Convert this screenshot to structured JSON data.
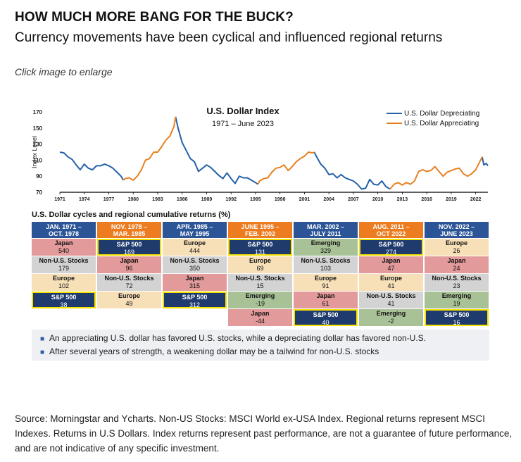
{
  "header": {
    "title": "HOW MUCH MORE BANG FOR THE BUCK?",
    "subtitle": "Currency movements have been cyclical and influenced regional returns",
    "click_hint": "Click image to enlarge"
  },
  "colors": {
    "depreciating": "#2461a8",
    "appreciating": "#e8801f",
    "header_blue": "#2b5597",
    "header_orange": "#ec7c1f",
    "sp_navy": "#1f3b6e",
    "sp_border": "#f5e100",
    "japan": "#e39a9b",
    "europe": "#f7e0b8",
    "non_us": "#d3d3d3",
    "emerging": "#a8c196"
  },
  "chart_data": {
    "type": "line",
    "title": "U.S. Dollar Index",
    "subtitle": "1971 – June 2023",
    "ylabel": "Index Level",
    "ylim": [
      70,
      170
    ],
    "yticks": [
      70,
      90,
      110,
      130,
      150,
      170
    ],
    "xlim": [
      1971,
      2023.5
    ],
    "xticks": [
      "1971",
      "1974",
      "1977",
      "1980",
      "1983",
      "1986",
      "1989",
      "1992",
      "1995",
      "1998",
      "2001",
      "2004",
      "2007",
      "2010",
      "2013",
      "2016",
      "2019",
      "2022"
    ],
    "legend_position": "top-right",
    "series": [
      {
        "name": "U.S. Dollar Depreciating",
        "color": "#2461a8",
        "segment_points": [
          [
            [
              1971.0,
              120
            ],
            [
              1971.5,
              119
            ],
            [
              1972.0,
              114
            ],
            [
              1972.5,
              111
            ],
            [
              1973.0,
              104
            ],
            [
              1973.5,
              98
            ],
            [
              1974.0,
              105
            ],
            [
              1974.5,
              100
            ],
            [
              1975.0,
              98
            ],
            [
              1975.5,
              103
            ],
            [
              1976.0,
              103
            ],
            [
              1976.5,
              105
            ],
            [
              1977.0,
              103
            ],
            [
              1977.5,
              100
            ],
            [
              1978.0,
              95
            ],
            [
              1978.5,
              90
            ],
            [
              1978.8,
              85
            ]
          ],
          [
            [
              1985.2,
              164
            ],
            [
              1985.5,
              150
            ],
            [
              1986.0,
              132
            ],
            [
              1986.5,
              122
            ],
            [
              1987.0,
              112
            ],
            [
              1987.5,
              108
            ],
            [
              1988.0,
              96
            ],
            [
              1988.5,
              100
            ],
            [
              1989.0,
              104
            ],
            [
              1989.5,
              101
            ],
            [
              1990.0,
              96
            ],
            [
              1990.5,
              91
            ],
            [
              1991.0,
              87
            ],
            [
              1991.5,
              94
            ],
            [
              1992.0,
              87
            ],
            [
              1992.5,
              81
            ],
            [
              1993.0,
              90
            ],
            [
              1993.5,
              88
            ],
            [
              1994.0,
              88
            ],
            [
              1994.5,
              85
            ],
            [
              1995.0,
              82
            ],
            [
              1995.3,
              80
            ]
          ],
          [
            [
              2002.2,
              120
            ],
            [
              2002.5,
              114
            ],
            [
              2003.0,
              105
            ],
            [
              2003.5,
              100
            ],
            [
              2004.0,
              92
            ],
            [
              2004.5,
              93
            ],
            [
              2005.0,
              88
            ],
            [
              2005.5,
              92
            ],
            [
              2006.0,
              88
            ],
            [
              2006.5,
              86
            ],
            [
              2007.0,
              84
            ],
            [
              2007.5,
              80
            ],
            [
              2008.0,
              74
            ],
            [
              2008.5,
              75
            ],
            [
              2009.0,
              86
            ],
            [
              2009.5,
              80
            ],
            [
              2010.0,
              79
            ],
            [
              2010.5,
              84
            ],
            [
              2011.0,
              77
            ],
            [
              2011.5,
              74
            ]
          ],
          [
            [
              2022.8,
              114
            ],
            [
              2023.0,
              104
            ],
            [
              2023.3,
              106
            ],
            [
              2023.5,
              103
            ]
          ]
        ]
      },
      {
        "name": "U.S. Dollar Appreciating",
        "color": "#e8801f",
        "segment_points": [
          [
            [
              1978.8,
              85
            ],
            [
              1979.0,
              87
            ],
            [
              1979.5,
              88
            ],
            [
              1980.0,
              85
            ],
            [
              1980.5,
              90
            ],
            [
              1981.0,
              98
            ],
            [
              1981.5,
              110
            ],
            [
              1982.0,
              112
            ],
            [
              1982.5,
              120
            ],
            [
              1983.0,
              120
            ],
            [
              1983.5,
              127
            ],
            [
              1984.0,
              135
            ],
            [
              1984.5,
              140
            ],
            [
              1985.0,
              152
            ],
            [
              1985.2,
              164
            ]
          ],
          [
            [
              1995.3,
              80
            ],
            [
              1995.5,
              84
            ],
            [
              1996.0,
              87
            ],
            [
              1996.5,
              88
            ],
            [
              1997.0,
              95
            ],
            [
              1997.5,
              100
            ],
            [
              1998.0,
              101
            ],
            [
              1998.5,
              104
            ],
            [
              1999.0,
              97
            ],
            [
              1999.5,
              102
            ],
            [
              2000.0,
              108
            ],
            [
              2000.5,
              112
            ],
            [
              2001.0,
              115
            ],
            [
              2001.5,
              120
            ],
            [
              2002.0,
              119
            ],
            [
              2002.2,
              120
            ]
          ],
          [
            [
              2011.5,
              74
            ],
            [
              2012.0,
              80
            ],
            [
              2012.5,
              82
            ],
            [
              2013.0,
              79
            ],
            [
              2013.5,
              82
            ],
            [
              2014.0,
              80
            ],
            [
              2014.5,
              84
            ],
            [
              2015.0,
              96
            ],
            [
              2015.5,
              98
            ],
            [
              2016.0,
              96
            ],
            [
              2016.5,
              97
            ],
            [
              2017.0,
              102
            ],
            [
              2017.5,
              96
            ],
            [
              2018.0,
              90
            ],
            [
              2018.5,
              95
            ],
            [
              2019.0,
              97
            ],
            [
              2019.5,
              99
            ],
            [
              2020.0,
              100
            ],
            [
              2020.5,
              93
            ],
            [
              2021.0,
              90
            ],
            [
              2021.5,
              93
            ],
            [
              2022.0,
              98
            ],
            [
              2022.5,
              108
            ],
            [
              2022.8,
              114
            ]
          ]
        ]
      }
    ]
  },
  "table": {
    "title": "U.S. Dollar cycles and regional cumulative returns (%)",
    "columns": [
      {
        "period": "JAN. 1971 –",
        "period2": "OCT. 1978",
        "phase": "depreciating",
        "rows": [
          {
            "name": "Japan",
            "value": "540",
            "kind": "japan"
          },
          {
            "name": "Non-U.S. Stocks",
            "value": "179",
            "kind": "non_us"
          },
          {
            "name": "Europe",
            "value": "102",
            "kind": "europe"
          },
          {
            "name": "S&P 500",
            "value": "38",
            "kind": "sp"
          }
        ]
      },
      {
        "period": "NOV. 1978 –",
        "period2": "MAR. 1985",
        "phase": "appreciating",
        "rows": [
          {
            "name": "S&P 500",
            "value": "169",
            "kind": "sp"
          },
          {
            "name": "Japan",
            "value": "96",
            "kind": "japan"
          },
          {
            "name": "Non-U.S. Stocks",
            "value": "72",
            "kind": "non_us"
          },
          {
            "name": "Europe",
            "value": "49",
            "kind": "europe"
          }
        ]
      },
      {
        "period": "APR. 1985 –",
        "period2": "MAY 1995",
        "phase": "depreciating",
        "rows": [
          {
            "name": "Europe",
            "value": "444",
            "kind": "europe"
          },
          {
            "name": "Non-U.S. Stocks",
            "value": "350",
            "kind": "non_us"
          },
          {
            "name": "Japan",
            "value": "315",
            "kind": "japan"
          },
          {
            "name": "S&P 500",
            "value": "312",
            "kind": "sp"
          }
        ]
      },
      {
        "period": "JUNE 1995 –",
        "period2": "FEB. 2002",
        "phase": "appreciating",
        "rows": [
          {
            "name": "S&P 500",
            "value": "131",
            "kind": "sp"
          },
          {
            "name": "Europe",
            "value": "69",
            "kind": "europe"
          },
          {
            "name": "Non-U.S. Stocks",
            "value": "15",
            "kind": "non_us"
          },
          {
            "name": "Emerging",
            "value": "-19",
            "kind": "emerging"
          },
          {
            "name": "Japan",
            "value": "-44",
            "kind": "japan"
          }
        ]
      },
      {
        "period": "MAR. 2002 –",
        "period2": "JULY 2011",
        "phase": "depreciating",
        "rows": [
          {
            "name": "Emerging",
            "value": "329",
            "kind": "emerging"
          },
          {
            "name": "Non-U.S. Stocks",
            "value": "103",
            "kind": "non_us"
          },
          {
            "name": "Europe",
            "value": "91",
            "kind": "europe"
          },
          {
            "name": "Japan",
            "value": "61",
            "kind": "japan"
          },
          {
            "name": "S&P 500",
            "value": "40",
            "kind": "sp"
          }
        ]
      },
      {
        "period": "AUG. 2011 –",
        "period2": "OCT 2022",
        "phase": "appreciating",
        "rows": [
          {
            "name": "S&P 500",
            "value": "274",
            "kind": "sp"
          },
          {
            "name": "Japan",
            "value": "47",
            "kind": "japan"
          },
          {
            "name": "Europe",
            "value": "41",
            "kind": "europe"
          },
          {
            "name": "Non-U.S. Stocks",
            "value": "41",
            "kind": "non_us"
          },
          {
            "name": "Emerging",
            "value": "-2",
            "kind": "emerging"
          }
        ]
      },
      {
        "period": "NOV. 2022 –",
        "period2": "JUNE 2023",
        "phase": "depreciating",
        "rows": [
          {
            "name": "Europe",
            "value": "26",
            "kind": "europe"
          },
          {
            "name": "Japan",
            "value": "24",
            "kind": "japan"
          },
          {
            "name": "Non-U.S. Stocks",
            "value": "23",
            "kind": "non_us"
          },
          {
            "name": "Emerging",
            "value": "19",
            "kind": "emerging"
          },
          {
            "name": "S&P 500",
            "value": "16",
            "kind": "sp"
          }
        ]
      }
    ]
  },
  "notes": [
    "An appreciating U.S. dollar has favored U.S. stocks, while a depreciating dollar has favored non-U.S.",
    "After several years of strength, a weakening dollar may be a tailwind for non-U.S. stocks"
  ],
  "source": "Source: Morningstar and Ycharts. Non-US Stocks: MSCI World ex-USA Index. Regional returns represent MSCI Indexes. Returns in U.S Dollars. Index returns represent past performance, are not a guarantee of future performance, and are not indicative of any specific investment."
}
